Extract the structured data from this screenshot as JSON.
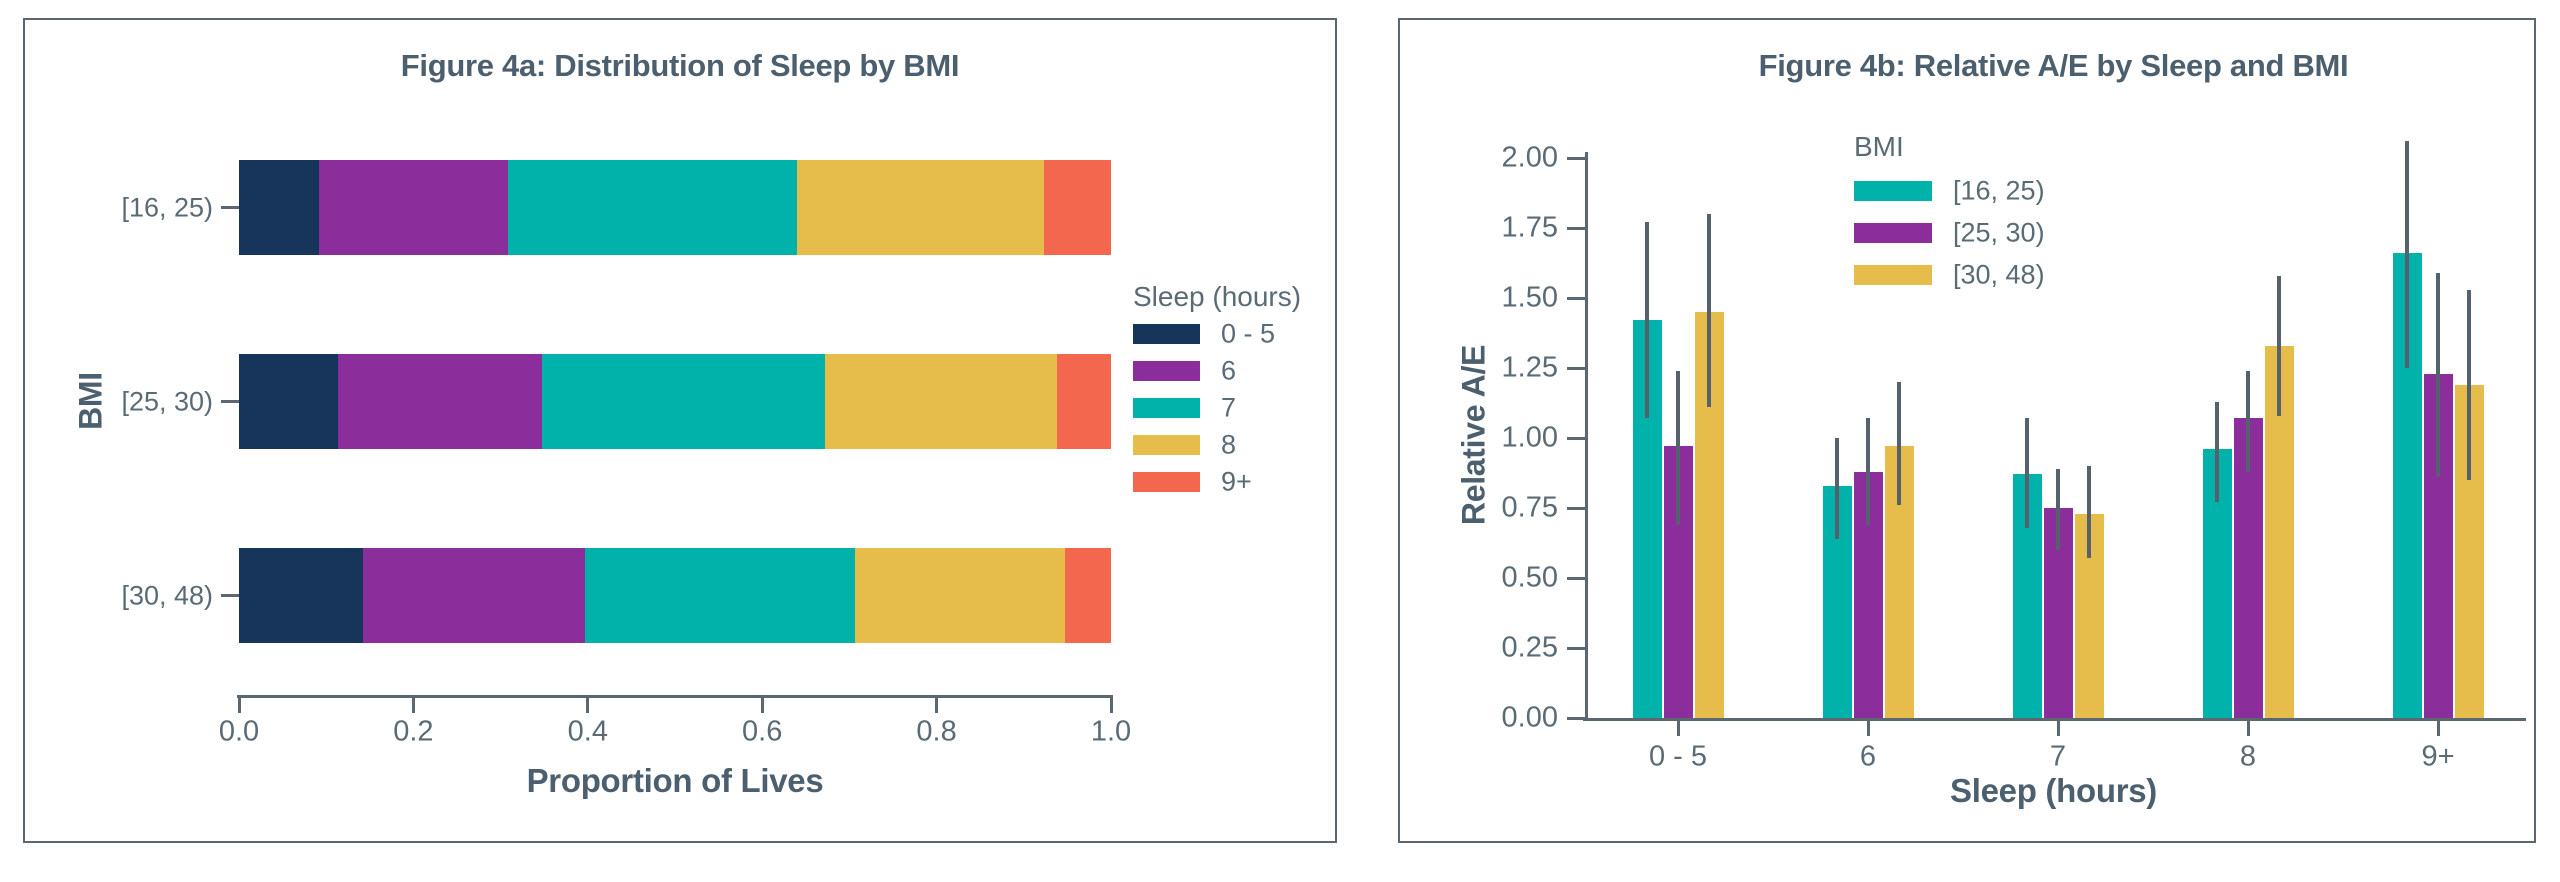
{
  "colors": {
    "navy": "#17355b",
    "purple": "#8b2d9b",
    "teal": "#00b2a9",
    "gold": "#e6bc4a",
    "orange": "#f2674d",
    "title_text": "#4c5f6e",
    "tick_text": "#5a6b76",
    "axis_line": "#5b6771",
    "error_bar": "#55626d",
    "card_border": "#5b6770"
  },
  "chart_data": [
    {
      "type": "bar",
      "orientation": "horizontal",
      "stacked": true,
      "title": "Figure 4a: Distribution of Sleep by BMI",
      "xlabel": "Proportion of Lives",
      "ylabel": "BMI",
      "xlim": [
        0,
        1
      ],
      "x_tick_labels": [
        "0.0",
        "0.2",
        "0.4",
        "0.6",
        "0.8",
        "1.0"
      ],
      "categories": [
        "[16, 25)",
        "[25, 30)",
        "[30, 48)"
      ],
      "legend_title": "Sleep (hours)",
      "legend_position": "right-outside",
      "grid": false,
      "series": [
        {
          "name": "0 - 5",
          "color": "navy",
          "values": [
            0.092,
            0.114,
            0.142
          ]
        },
        {
          "name": "6",
          "color": "purple",
          "values": [
            0.217,
            0.234,
            0.255
          ]
        },
        {
          "name": "7",
          "color": "teal",
          "values": [
            0.331,
            0.324,
            0.309
          ]
        },
        {
          "name": "8",
          "color": "gold",
          "values": [
            0.283,
            0.266,
            0.241
          ]
        },
        {
          "name": "9+",
          "color": "orange",
          "values": [
            0.077,
            0.062,
            0.053
          ]
        }
      ]
    },
    {
      "type": "bar",
      "orientation": "vertical",
      "grouped": true,
      "title": "Figure 4b: Relative A/E by Sleep and BMI",
      "xlabel": "Sleep (hours)",
      "ylabel": "Relative A/E",
      "ylim": [
        0,
        2.07
      ],
      "y_tick_labels": [
        "0.00",
        "0.25",
        "0.50",
        "0.75",
        "1.00",
        "1.25",
        "1.50",
        "1.75",
        "2.00"
      ],
      "categories": [
        "0 - 5",
        "6",
        "7",
        "8",
        "9+"
      ],
      "legend_title": "BMI",
      "legend_position": "upper-left-inside",
      "grid": false,
      "error_bars": true,
      "series": [
        {
          "name": "[16, 25)",
          "color": "teal",
          "values": [
            1.42,
            0.83,
            0.87,
            0.96,
            1.66
          ],
          "err_lo": [
            1.07,
            0.64,
            0.68,
            0.77,
            1.25
          ],
          "err_hi": [
            1.77,
            1.0,
            1.07,
            1.13,
            2.06
          ]
        },
        {
          "name": "[25, 30)",
          "color": "purple",
          "values": [
            0.97,
            0.88,
            0.75,
            1.07,
            1.23
          ],
          "err_lo": [
            0.69,
            0.69,
            0.6,
            0.88,
            0.86
          ],
          "err_hi": [
            1.24,
            1.07,
            0.89,
            1.24,
            1.59
          ]
        },
        {
          "name": "[30, 48)",
          "color": "gold",
          "values": [
            1.45,
            0.97,
            0.73,
            1.33,
            1.19
          ],
          "err_lo": [
            1.11,
            0.76,
            0.57,
            1.08,
            0.85
          ],
          "err_hi": [
            1.8,
            1.2,
            0.9,
            1.58,
            1.53
          ]
        }
      ]
    }
  ]
}
